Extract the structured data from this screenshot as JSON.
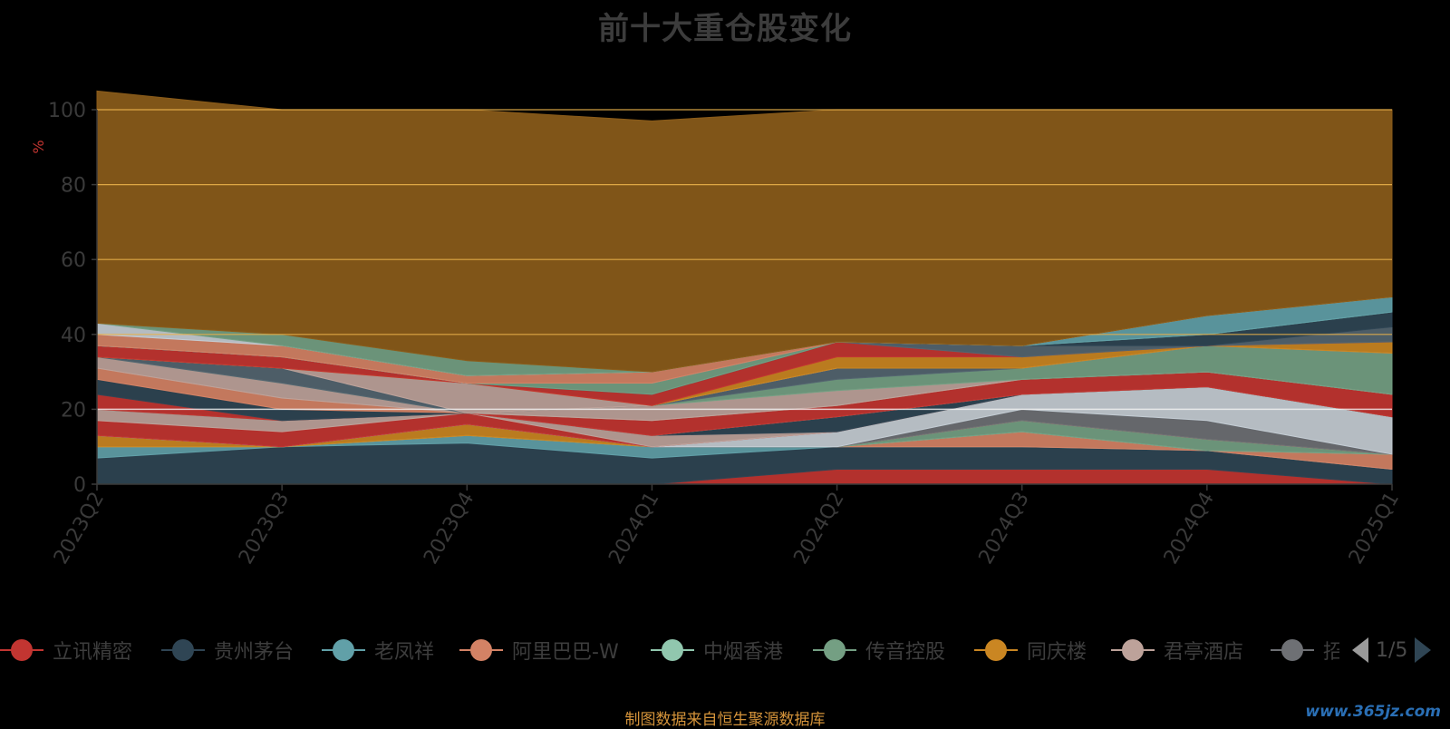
{
  "title": "前十大重仓股变化",
  "source_note": "制图数据来自恒生聚源数据库",
  "watermark": "www.365jz.com",
  "pager": {
    "text": "1/5"
  },
  "legend_items": [
    {
      "name": "立讯精密",
      "color": "#c23531"
    },
    {
      "name": "贵州茅台",
      "color": "#2f4554"
    },
    {
      "name": "老凤祥",
      "color": "#61a0a8"
    },
    {
      "name": "阿里巴巴-W",
      "color": "#d48265"
    },
    {
      "name": "中烟香港",
      "color": "#91c7ae"
    },
    {
      "name": "传音控股",
      "color": "#749f83"
    },
    {
      "name": "同庆楼",
      "color": "#ca8622"
    },
    {
      "name": "君亭酒店",
      "color": "#bda29a"
    },
    {
      "name": "招",
      "color": "#6e7074"
    }
  ],
  "chart_data": {
    "type": "area",
    "title": "前十大重仓股变化",
    "ylabel": "%",
    "ylim": [
      0,
      100
    ],
    "yticks": [
      "0",
      "20",
      "40",
      "60",
      "80",
      "100"
    ],
    "categories": [
      "2023Q2",
      "2023Q3",
      "2023Q4",
      "2024Q1",
      "2024Q2",
      "2024Q3",
      "2024Q4",
      "2025Q1"
    ],
    "series": [
      {
        "color": "#c23531",
        "values": [
          0,
          0,
          0,
          0,
          4,
          4,
          4,
          0
        ]
      },
      {
        "color": "#2f4554",
        "values": [
          7,
          10,
          11,
          7,
          6,
          6,
          5,
          4
        ]
      },
      {
        "color": "#61a0a8",
        "values": [
          3,
          0,
          2,
          3,
          0,
          0,
          0,
          0
        ]
      },
      {
        "color": "#d48265",
        "values": [
          0,
          0,
          0,
          0,
          0,
          4,
          0,
          4
        ]
      },
      {
        "color": "#91c7ae",
        "values": [
          0,
          0,
          0,
          0,
          0,
          0,
          0,
          0
        ]
      },
      {
        "color": "#749f83",
        "values": [
          0,
          0,
          0,
          0,
          0,
          3,
          3,
          0
        ]
      },
      {
        "color": "#ca8622",
        "values": [
          3,
          0,
          3,
          0,
          0,
          0,
          0,
          0
        ]
      },
      {
        "color": "#bda29a",
        "values": [
          0,
          0,
          0,
          0,
          0,
          0,
          0,
          0
        ]
      },
      {
        "color": "#6e7074",
        "values": [
          0,
          0,
          0,
          0,
          0,
          3,
          5,
          0
        ]
      },
      {
        "color": "#546570",
        "values": [
          0,
          0,
          0,
          0,
          0,
          0,
          0,
          0
        ]
      },
      {
        "color": "#c4ccd3",
        "values": [
          0,
          0,
          0,
          0,
          4,
          4,
          9,
          10
        ]
      },
      {
        "color": "#c23531",
        "values": [
          4,
          4,
          3,
          0,
          0,
          0,
          0,
          0
        ]
      },
      {
        "color": "#bda29a",
        "values": [
          3,
          3,
          0,
          3,
          0,
          0,
          0,
          0
        ]
      },
      {
        "color": "#2f4554",
        "values": [
          0,
          0,
          0,
          0,
          4,
          0,
          0,
          0
        ]
      },
      {
        "color": "#91c7ae",
        "values": [
          0,
          0,
          0,
          0,
          0,
          0,
          0,
          0
        ]
      },
      {
        "color": "#c23531",
        "values": [
          4,
          0,
          0,
          4,
          3,
          4,
          4,
          6
        ]
      },
      {
        "color": "#2f4554",
        "values": [
          4,
          3,
          0,
          0,
          0,
          0,
          0,
          0
        ]
      },
      {
        "color": "#d48265",
        "values": [
          3,
          3,
          0,
          0,
          0,
          0,
          0,
          0
        ]
      },
      {
        "color": "#bda29a",
        "values": [
          3,
          4,
          0,
          4,
          4,
          0,
          0,
          0
        ]
      },
      {
        "color": "#749f83",
        "values": [
          0,
          0,
          0,
          0,
          3,
          3,
          7,
          11
        ]
      },
      {
        "color": "#546570",
        "values": [
          0,
          4,
          0,
          0,
          3,
          0,
          0,
          0
        ]
      },
      {
        "color": "#bda29a",
        "values": [
          0,
          0,
          8,
          0,
          0,
          0,
          0,
          0
        ]
      },
      {
        "color": "#ca8622",
        "values": [
          0,
          0,
          0,
          0,
          3,
          3,
          0,
          3
        ]
      },
      {
        "color": "#c23531",
        "values": [
          3,
          3,
          0,
          3,
          4,
          0,
          0,
          0
        ]
      },
      {
        "color": "#546570",
        "values": [
          0,
          0,
          0,
          0,
          0,
          3,
          0,
          4
        ]
      },
      {
        "color": "#2f4554",
        "values": [
          0,
          0,
          0,
          0,
          0,
          0,
          3,
          4
        ]
      },
      {
        "color": "#749f83",
        "values": [
          0,
          0,
          0,
          3,
          0,
          0,
          0,
          0
        ]
      },
      {
        "color": "#61a0a8",
        "values": [
          0,
          0,
          0,
          0,
          0,
          0,
          5,
          4
        ]
      },
      {
        "color": "#d48265",
        "values": [
          3,
          3,
          2,
          3,
          0,
          0,
          0,
          0
        ]
      },
      {
        "color": "#c4ccd3",
        "values": [
          3,
          0,
          0,
          0,
          0,
          0,
          0,
          0
        ]
      },
      {
        "color": "#749f83",
        "values": [
          0,
          3,
          4,
          0,
          0,
          0,
          0,
          0
        ]
      },
      {
        "color": "#8b5c1a",
        "values": [
          62,
          60,
          67,
          67,
          62,
          63,
          55,
          50
        ]
      }
    ]
  }
}
